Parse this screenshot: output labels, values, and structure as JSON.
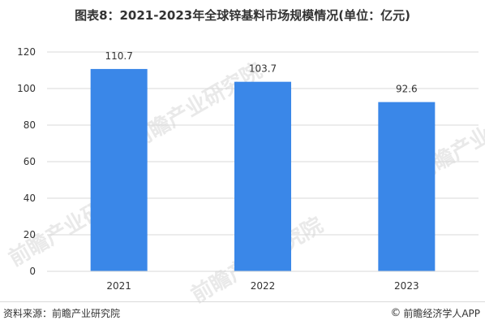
{
  "title": "图表8：2021-2023年全球锌基料市场规模情况(单位：亿元)",
  "source": "资料来源：前瞻产业研究院",
  "brand": {
    "copyright_symbol": "©",
    "name": "前瞻经济学人APP"
  },
  "watermark": {
    "text": "前瞻产业研究院"
  },
  "colors": {
    "bar": "#3a87e8",
    "grid": "#d9d9d9",
    "axis_text": "#333333"
  },
  "chart_data": {
    "type": "bar",
    "categories": [
      "2021",
      "2022",
      "2023"
    ],
    "values": [
      110.7,
      103.7,
      92.6
    ],
    "data_labels": [
      "110.7",
      "103.7",
      "92.6"
    ],
    "title": "图表8：2021-2023年全球锌基料市场规模情况(单位：亿元)",
    "xlabel": "",
    "ylabel": "",
    "ylim": [
      0,
      120
    ],
    "yticks": [
      0,
      20,
      40,
      60,
      80,
      100,
      120
    ],
    "grid": true,
    "legend": "none"
  }
}
